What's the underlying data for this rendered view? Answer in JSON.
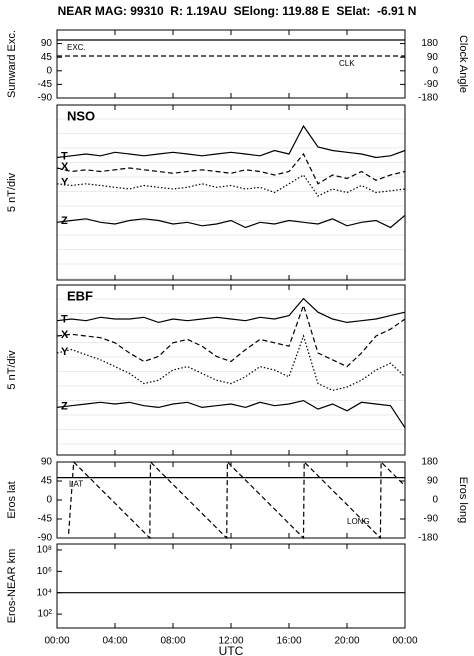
{
  "header": {
    "title": "NEAR MAG: 99310  R: 1.19AU  SElong: 119.88 E  SElat:  -6.91 N"
  },
  "chart_data": [
    {
      "type": "line",
      "ylabel": "Sunward Exc.",
      "y2label": "Clock Angle",
      "x": [
        0,
        24
      ],
      "ylim": [
        -90,
        135
      ],
      "yticks": [
        90,
        45,
        0,
        -45,
        -90
      ],
      "y2lim": [
        -180,
        270
      ],
      "y2ticks": [
        180,
        90,
        0,
        -90,
        -180
      ],
      "series": [
        {
          "name": "EXC.",
          "color": "#000000",
          "style": "solid",
          "values": [
            102,
            102
          ]
        },
        {
          "name": "CLK",
          "color": "#000000",
          "style": "dashed",
          "axis": "y2",
          "values": [
            98,
            98
          ]
        }
      ]
    },
    {
      "type": "line",
      "label": "NSO",
      "ylabel": "5 nT/div",
      "grid": true,
      "x": [
        0,
        1,
        2,
        3,
        4,
        5,
        6,
        7,
        8,
        9,
        10,
        11,
        12,
        13,
        14,
        15,
        16,
        17,
        18,
        19,
        20,
        21,
        22,
        23,
        24
      ],
      "ylim": [
        0,
        100
      ],
      "series": [
        {
          "name": "T",
          "color": "#000000",
          "style": "solid",
          "values": [
            70,
            71,
            72,
            71,
            73,
            72,
            71,
            72,
            73,
            72,
            71,
            72,
            73,
            72,
            71,
            74,
            72,
            88,
            76,
            74,
            73,
            72,
            70,
            71,
            74
          ]
        },
        {
          "name": "X",
          "color": "#000000",
          "style": "dashed",
          "values": [
            64,
            62,
            63,
            62,
            63,
            64,
            63,
            62,
            61,
            62,
            63,
            62,
            61,
            63,
            62,
            60,
            62,
            72,
            55,
            60,
            58,
            62,
            57,
            60,
            62
          ]
        },
        {
          "name": "Y",
          "color": "#000000",
          "style": "dotted",
          "values": [
            55,
            54,
            55,
            54,
            53,
            52,
            54,
            53,
            52,
            53,
            55,
            53,
            54,
            52,
            53,
            50,
            55,
            60,
            48,
            52,
            50,
            54,
            50,
            51,
            52
          ]
        },
        {
          "name": "Z",
          "color": "#000000",
          "style": "solid",
          "values": [
            33,
            34,
            35,
            33,
            32,
            34,
            35,
            34,
            32,
            33,
            31,
            32,
            34,
            30,
            33,
            32,
            34,
            33,
            32,
            35,
            31,
            33,
            34,
            30,
            37
          ]
        }
      ]
    },
    {
      "type": "line",
      "label": "EBF",
      "ylabel": "5 nT/div",
      "grid": true,
      "x": [
        0,
        1,
        2,
        3,
        4,
        5,
        6,
        7,
        8,
        9,
        10,
        11,
        12,
        13,
        14,
        15,
        16,
        17,
        18,
        19,
        20,
        21,
        22,
        23,
        24
      ],
      "ylim": [
        0,
        100
      ],
      "series": [
        {
          "name": "T",
          "color": "#000000",
          "style": "solid",
          "values": [
            79,
            80,
            79,
            81,
            80,
            80,
            81,
            78,
            80,
            79,
            80,
            81,
            80,
            79,
            81,
            80,
            82,
            92,
            84,
            80,
            78,
            79,
            80,
            82,
            84
          ]
        },
        {
          "name": "X",
          "color": "#000000",
          "style": "dashed",
          "values": [
            70,
            71,
            70,
            69,
            66,
            60,
            55,
            58,
            66,
            68,
            64,
            58,
            55,
            62,
            68,
            66,
            64,
            88,
            60,
            56,
            52,
            60,
            70,
            74,
            80
          ]
        },
        {
          "name": "Y",
          "color": "#000000",
          "style": "dotted",
          "values": [
            60,
            62,
            59,
            56,
            52,
            48,
            42,
            44,
            50,
            52,
            48,
            44,
            42,
            46,
            52,
            50,
            46,
            70,
            42,
            38,
            40,
            44,
            50,
            54,
            46
          ]
        },
        {
          "name": "Z",
          "color": "#000000",
          "style": "solid",
          "values": [
            28,
            29,
            30,
            31,
            30,
            31,
            29,
            28,
            30,
            31,
            28,
            29,
            30,
            28,
            31,
            29,
            30,
            32,
            27,
            30,
            26,
            31,
            30,
            29,
            16
          ]
        }
      ]
    },
    {
      "type": "line",
      "ylabel": "Eros lat",
      "y2label": "Eros long",
      "x": [
        0,
        24
      ],
      "ylim": [
        -90,
        90
      ],
      "yticks": [
        90,
        45,
        0,
        -45,
        -90
      ],
      "y2lim": [
        -180,
        180
      ],
      "y2ticks": [
        180,
        90,
        0,
        -90,
        -180
      ],
      "series": [
        {
          "name": "LAT",
          "color": "#000000",
          "style": "solid",
          "values": [
            53,
            53
          ]
        },
        {
          "name": "LONG",
          "color": "#000000",
          "style": "dashed",
          "axis": "y2",
          "x": [
            0.8,
            1.15,
            6.4,
            6.45,
            11.7,
            11.75,
            17.0,
            17.05,
            22.3,
            22.35,
            24
          ],
          "values": [
            -160,
            180,
            -180,
            180,
            -180,
            180,
            -180,
            180,
            -180,
            180,
            67
          ]
        }
      ]
    },
    {
      "type": "line",
      "ylabel": "Eros-NEAR km",
      "xlabel": "UTC",
      "ylog": true,
      "x": [
        0,
        24
      ],
      "ylim": [
        5,
        360000000
      ],
      "yticks": [
        {
          "value": 100000000,
          "label": "10⁸"
        },
        {
          "value": 1000000,
          "label": "10⁶"
        },
        {
          "value": 10000,
          "label": "10⁴"
        },
        {
          "value": 100,
          "label": "10²"
        }
      ],
      "xlim": [
        0,
        24
      ],
      "xticks": [
        {
          "value": 0,
          "label": "00:00"
        },
        {
          "value": 4,
          "label": "04:00"
        },
        {
          "value": 8,
          "label": "08:00"
        },
        {
          "value": 12,
          "label": "12:00"
        },
        {
          "value": 16,
          "label": "16:00"
        },
        {
          "value": 20,
          "label": "20:00"
        },
        {
          "value": 24,
          "label": "00:00"
        }
      ],
      "series": [
        {
          "color": "#000000",
          "style": "solid",
          "values": [
            10000,
            10000
          ]
        }
      ]
    }
  ]
}
